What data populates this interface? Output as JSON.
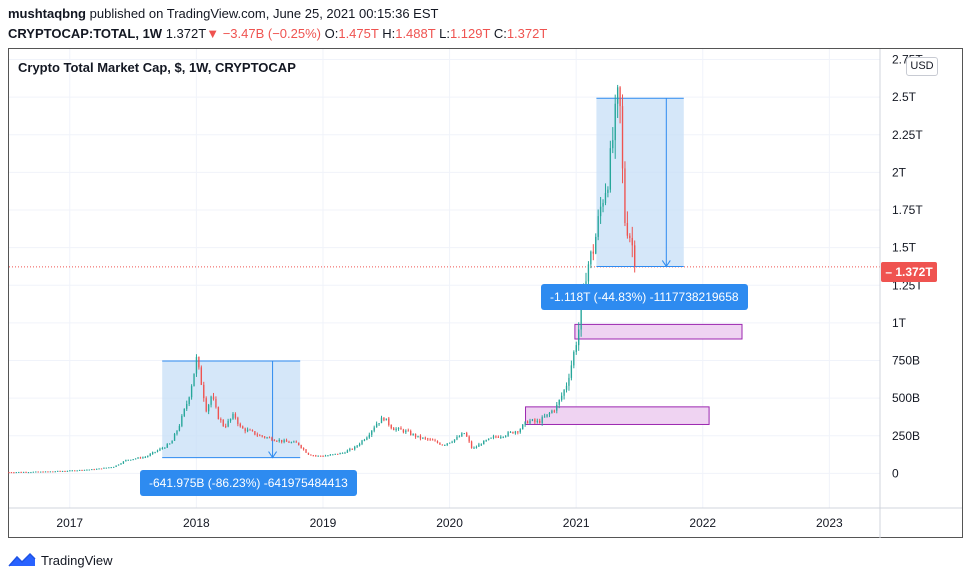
{
  "header": {
    "author": "mushtaqbng",
    "published_text": "published on TradingView.com, June 25, 2021 00:15:36 EST",
    "symbol": "CRYPTOCAP:TOTAL, 1W",
    "last": "1.372T",
    "arrow": "▼",
    "change": "−3.47B (−0.25%)",
    "o_label": "O:",
    "o_value": "1.475T",
    "h_label": "H:",
    "h_value": "1.488T",
    "l_label": "L:",
    "l_value": "1.129T",
    "c_label": "C:",
    "c_value": "1.372T"
  },
  "currency_button": "USD",
  "current_price_badge": "1.372T",
  "measure_tooltips": [
    "-641.975B (-86.23%) -641975484413",
    "-1.118T (-44.83%) -1117738219658"
  ],
  "footer": {
    "brand": "TradingView",
    "logo_icon": "tradingview-logo-icon"
  },
  "colors": {
    "up": "#26a69a",
    "down": "#ef5350",
    "measure_fill": "#c7dff7",
    "measure_line": "#2e8bf0",
    "zone_fill": "#efd3f2",
    "zone_border": "#9c27b0"
  },
  "chart_data": {
    "type": "candlestick",
    "title": "Crypto Total Market Cap, $, 1W, CRYPTOCAP",
    "x_ticks": [
      "2017",
      "2018",
      "2019",
      "2020",
      "2021",
      "2022",
      "2023"
    ],
    "y_ticks": [
      "0",
      "250B",
      "500B",
      "750B",
      "1T",
      "1.25T",
      "1.5T",
      "1.75T",
      "2T",
      "2.25T",
      "2.5T",
      "2.75T"
    ],
    "y_tick_values": [
      0,
      250,
      500,
      750,
      1000,
      1250,
      1500,
      1750,
      2000,
      2250,
      2500,
      2750
    ],
    "ylim": [
      -230,
      2820
    ],
    "xlim": [
      2016.52,
      2023.4
    ],
    "unit": "billions USD",
    "current_price": 1372,
    "series_path": [
      [
        2016.52,
        8
      ],
      [
        2016.8,
        11
      ],
      [
        2017.0,
        18
      ],
      [
        2017.2,
        28
      ],
      [
        2017.35,
        45
      ],
      [
        2017.45,
        90
      ],
      [
        2017.6,
        110
      ],
      [
        2017.7,
        155
      ],
      [
        2017.8,
        200
      ],
      [
        2017.87,
        330
      ],
      [
        2017.93,
        480
      ],
      [
        2017.97,
        620
      ],
      [
        2018.0,
        760
      ],
      [
        2018.04,
        600
      ],
      [
        2018.08,
        420
      ],
      [
        2018.12,
        520
      ],
      [
        2018.17,
        380
      ],
      [
        2018.22,
        310
      ],
      [
        2018.3,
        390
      ],
      [
        2018.35,
        300
      ],
      [
        2018.42,
        280
      ],
      [
        2018.5,
        250
      ],
      [
        2018.6,
        230
      ],
      [
        2018.7,
        210
      ],
      [
        2018.8,
        200
      ],
      [
        2018.88,
        130
      ],
      [
        2018.95,
        115
      ],
      [
        2019.05,
        120
      ],
      [
        2019.15,
        135
      ],
      [
        2019.25,
        170
      ],
      [
        2019.35,
        250
      ],
      [
        2019.42,
        330
      ],
      [
        2019.48,
        370
      ],
      [
        2019.55,
        300
      ],
      [
        2019.65,
        280
      ],
      [
        2019.75,
        240
      ],
      [
        2019.85,
        220
      ],
      [
        2019.95,
        190
      ],
      [
        2020.05,
        230
      ],
      [
        2020.12,
        270
      ],
      [
        2020.18,
        160
      ],
      [
        2020.25,
        200
      ],
      [
        2020.35,
        240
      ],
      [
        2020.45,
        260
      ],
      [
        2020.55,
        290
      ],
      [
        2020.62,
        350
      ],
      [
        2020.7,
        340
      ],
      [
        2020.78,
        390
      ],
      [
        2020.85,
        450
      ],
      [
        2020.92,
        580
      ],
      [
        2020.97,
        750
      ],
      [
        2021.03,
        1000
      ],
      [
        2021.08,
        1350
      ],
      [
        2021.14,
        1500
      ],
      [
        2021.2,
        1800
      ],
      [
        2021.26,
        2000
      ],
      [
        2021.3,
        2300
      ],
      [
        2021.34,
        2550
      ],
      [
        2021.38,
        1700
      ],
      [
        2021.42,
        1600
      ],
      [
        2021.46,
        1450
      ],
      [
        2021.48,
        1372
      ]
    ],
    "measure_ranges": [
      {
        "x0": 2017.73,
        "x1": 2018.82,
        "y_top": 747,
        "y_bottom": 105
      },
      {
        "x0": 2021.16,
        "x1": 2021.85,
        "y_top": 2493,
        "y_bottom": 1375
      }
    ],
    "zones": [
      {
        "x0": 2020.6,
        "x1": 2022.05,
        "y_top": 442,
        "y_bottom": 325
      },
      {
        "x0": 2020.99,
        "x1": 2022.31,
        "y_top": 990,
        "y_bottom": 893
      }
    ]
  }
}
